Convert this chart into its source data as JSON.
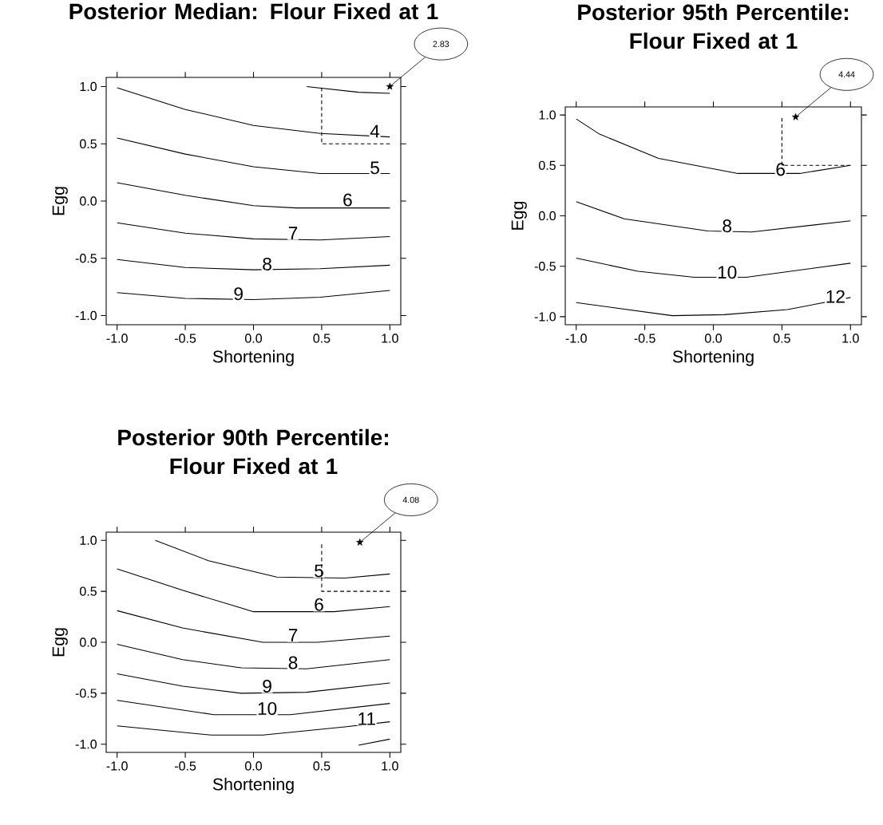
{
  "chart_data": [
    {
      "type": "line",
      "title": "Posterior Median: Flour Fixed at 1",
      "xlabel": "Shortening",
      "ylabel": "Egg",
      "xlim": [
        -1.08,
        1.08
      ],
      "ylim": [
        -1.08,
        1.08
      ],
      "xticks": [
        {
          "value": -1,
          "label": "-1.0"
        },
        {
          "value": -0.5,
          "label": "-0.5"
        },
        {
          "value": 0,
          "label": "0.0"
        },
        {
          "value": 0.5,
          "label": "0.5"
        },
        {
          "value": 1,
          "label": "1.0"
        }
      ],
      "yticks": [
        {
          "value": -1,
          "label": "-1.0"
        },
        {
          "value": -0.5,
          "label": "-0.5"
        },
        {
          "value": 0,
          "label": "0.0"
        },
        {
          "value": 0.5,
          "label": "0.5"
        },
        {
          "value": 1,
          "label": "1.0"
        }
      ],
      "series": [
        {
          "color": "#000000",
          "x": [
            0.39,
            0.77,
            1
          ],
          "values": [
            1.0,
            0.95,
            0.94
          ]
        },
        {
          "color": "#000000",
          "x": [
            -1,
            -0.5,
            0,
            0.49,
            1
          ],
          "values": [
            0.99,
            0.8,
            0.66,
            0.59,
            0.56
          ]
        },
        {
          "color": "#000000",
          "x": [
            -1,
            -0.5,
            0,
            0.49,
            1
          ],
          "values": [
            0.55,
            0.41,
            0.3,
            0.24,
            0.24
          ]
        },
        {
          "color": "#000000",
          "x": [
            -1,
            -0.5,
            0,
            0.31,
            1
          ],
          "values": [
            0.16,
            0.05,
            -0.04,
            -0.06,
            -0.06
          ]
        },
        {
          "color": "#000000",
          "x": [
            -1,
            -0.5,
            0,
            0.49,
            1
          ],
          "values": [
            -0.19,
            -0.28,
            -0.33,
            -0.34,
            -0.31
          ]
        },
        {
          "color": "#000000",
          "x": [
            -1,
            -0.5,
            0,
            0.49,
            1
          ],
          "values": [
            -0.51,
            -0.58,
            -0.6,
            -0.59,
            -0.56
          ]
        },
        {
          "color": "#000000",
          "x": [
            -1,
            -0.5,
            0,
            0.49,
            1
          ],
          "values": [
            -0.8,
            -0.85,
            -0.86,
            -0.84,
            -0.78
          ]
        },
        {
          "color": "#000000",
          "line_style": "dashed",
          "x": [
            0.5,
            0.5,
            1
          ],
          "values": [
            0.99,
            0.5,
            0.5
          ]
        },
        {
          "type": "scatter",
          "marker": "star",
          "color": "#000000",
          "x": [
            1
          ],
          "values": [
            1
          ]
        }
      ],
      "annotations": [
        "2.83",
        {
          "text": "4",
          "x": 0.89,
          "y": 0.61
        },
        {
          "text": "5",
          "x": 0.89,
          "y": 0.29
        },
        {
          "text": "6",
          "x": 0.69,
          "y": 0.01
        },
        {
          "text": "7",
          "x": 0.29,
          "y": -0.28
        },
        {
          "text": "8",
          "x": 0.1,
          "y": -0.55
        },
        {
          "text": "9",
          "x": -0.11,
          "y": -0.81
        }
      ]
    },
    {
      "type": "line",
      "title": "Posterior 95th Percentile: Flour Fixed at 1",
      "xlabel": "Shortening",
      "ylabel": "Egg",
      "xlim": [
        -1.08,
        1.08
      ],
      "ylim": [
        -1.08,
        1.08
      ],
      "xticks": [
        {
          "value": -1,
          "label": "-1.0"
        },
        {
          "value": -0.5,
          "label": "-0.5"
        },
        {
          "value": 0,
          "label": "0.0"
        },
        {
          "value": 0.5,
          "label": "0.5"
        },
        {
          "value": 1,
          "label": "1.0"
        }
      ],
      "yticks": [
        {
          "value": -1,
          "label": "-1.0"
        },
        {
          "value": -0.5,
          "label": "-0.5"
        },
        {
          "value": 0,
          "label": "0.0"
        },
        {
          "value": 0.5,
          "label": "0.5"
        },
        {
          "value": 1,
          "label": "1.0"
        }
      ],
      "series": [
        {
          "color": "#000000",
          "x": [
            -1,
            -0.83,
            -0.4,
            0.18,
            0.63,
            1
          ],
          "values": [
            0.96,
            0.81,
            0.57,
            0.42,
            0.42,
            0.5
          ]
        },
        {
          "color": "#000000",
          "x": [
            -1,
            -0.65,
            -0.04,
            0.28,
            1
          ],
          "values": [
            0.14,
            -0.03,
            -0.15,
            -0.16,
            -0.05
          ]
        },
        {
          "color": "#000000",
          "x": [
            -1,
            -0.55,
            -0.14,
            0.24,
            1
          ],
          "values": [
            -0.42,
            -0.55,
            -0.61,
            -0.61,
            -0.47
          ]
        },
        {
          "color": "#000000",
          "x": [
            -1,
            -0.3,
            0.08,
            0.54,
            1
          ],
          "values": [
            -0.86,
            -0.99,
            -0.98,
            -0.93,
            -0.81
          ]
        },
        {
          "color": "#000000",
          "line_style": "dashed",
          "x": [
            0.5,
            0.5,
            1
          ],
          "values": [
            0.97,
            0.5,
            0.5
          ]
        },
        {
          "type": "scatter",
          "marker": "star",
          "color": "#000000",
          "x": [
            0.6
          ],
          "values": [
            0.98
          ]
        }
      ],
      "annotations": [
        "4.44",
        {
          "text": "6",
          "x": 0.49,
          "y": 0.46
        },
        {
          "text": "8",
          "x": 0.1,
          "y": -0.1
        },
        {
          "text": "10",
          "x": 0.1,
          "y": -0.56
        },
        {
          "text": "12",
          "x": 0.89,
          "y": -0.8
        }
      ]
    },
    {
      "type": "line",
      "title": "Posterior 90th Percentile: Flour Fixed at 1",
      "xlabel": "Shortening",
      "ylabel": "Egg",
      "xlim": [
        -1.08,
        1.08
      ],
      "ylim": [
        -1.08,
        1.08
      ],
      "xticks": [
        {
          "value": -1,
          "label": "-1.0"
        },
        {
          "value": -0.5,
          "label": "-0.5"
        },
        {
          "value": 0,
          "label": "0.0"
        },
        {
          "value": 0.5,
          "label": "0.5"
        },
        {
          "value": 1,
          "label": "1.0"
        }
      ],
      "yticks": [
        {
          "value": -1,
          "label": "-1.0"
        },
        {
          "value": -0.5,
          "label": "-0.5"
        },
        {
          "value": 0,
          "label": "0.0"
        },
        {
          "value": 0.5,
          "label": "0.5"
        },
        {
          "value": 1,
          "label": "1.0"
        }
      ],
      "series": [
        {
          "color": "#000000",
          "x": [
            -0.72,
            -0.33,
            0.17,
            0.67,
            1
          ],
          "values": [
            1.0,
            0.8,
            0.64,
            0.63,
            0.67
          ]
        },
        {
          "color": "#000000",
          "x": [
            -1,
            -0.52,
            0,
            0.59,
            1
          ],
          "values": [
            0.72,
            0.51,
            0.3,
            0.3,
            0.35
          ]
        },
        {
          "color": "#000000",
          "x": [
            -1,
            -0.52,
            0.07,
            0.47,
            1
          ],
          "values": [
            0.31,
            0.14,
            0.0,
            0.0,
            0.06
          ]
        },
        {
          "color": "#000000",
          "x": [
            -1,
            -0.52,
            -0.09,
            0.39,
            1
          ],
          "values": [
            -0.02,
            -0.17,
            -0.25,
            -0.26,
            -0.17
          ]
        },
        {
          "color": "#000000",
          "x": [
            -1,
            -0.52,
            -0.09,
            0.39,
            1
          ],
          "values": [
            -0.31,
            -0.43,
            -0.5,
            -0.49,
            -0.4
          ]
        },
        {
          "color": "#000000",
          "x": [
            -1,
            -0.29,
            0.27,
            1
          ],
          "values": [
            -0.57,
            -0.71,
            -0.71,
            -0.6
          ]
        },
        {
          "color": "#000000",
          "x": [
            -1,
            -0.31,
            0.07,
            0.67,
            1
          ],
          "values": [
            -0.82,
            -0.91,
            -0.91,
            -0.83,
            -0.78
          ]
        },
        {
          "color": "#000000",
          "x": [
            0.77,
            1
          ],
          "values": [
            -1.01,
            -0.95
          ]
        },
        {
          "color": "#000000",
          "line_style": "dashed",
          "x": [
            0.5,
            0.5,
            1
          ],
          "values": [
            0.96,
            0.5,
            0.5
          ]
        },
        {
          "type": "scatter",
          "marker": "star",
          "color": "#000000",
          "x": [
            0.78
          ],
          "values": [
            0.98
          ]
        }
      ],
      "annotations": [
        "4.08",
        {
          "text": "5",
          "x": 0.48,
          "y": 0.7
        },
        {
          "text": "6",
          "x": 0.48,
          "y": 0.37
        },
        {
          "text": "7",
          "x": 0.29,
          "y": 0.07
        },
        {
          "text": "8",
          "x": 0.29,
          "y": -0.2
        },
        {
          "text": "9",
          "x": 0.1,
          "y": -0.43
        },
        {
          "text": "10",
          "x": 0.1,
          "y": -0.65
        },
        {
          "text": "11",
          "x": 0.83,
          "y": -0.75
        }
      ]
    }
  ]
}
